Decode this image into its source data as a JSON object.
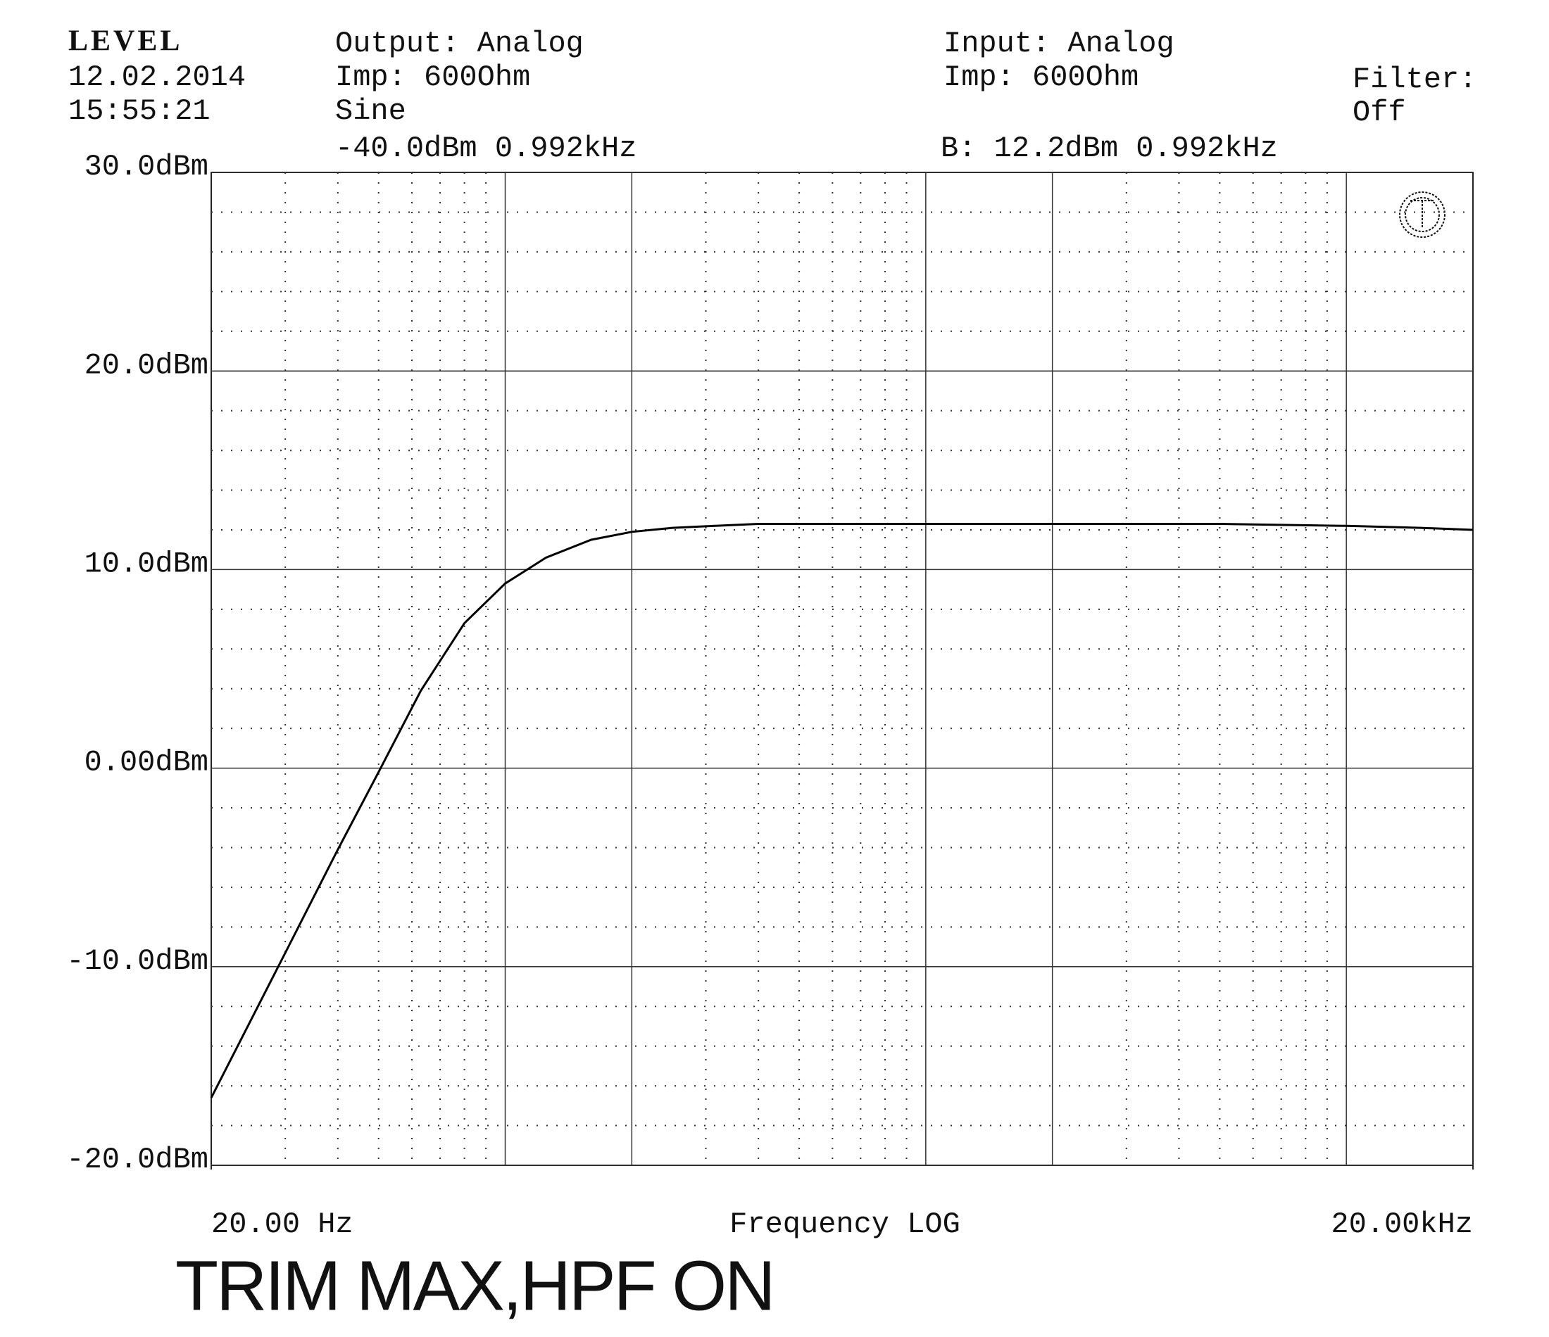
{
  "header": {
    "brand": "LEVEL",
    "date": "12.02.2014",
    "time": "15:55:21",
    "output": "Output: Analog",
    "output_imp": "Imp: 600Ohm",
    "waveform": "Sine",
    "generator": "-40.0dBm 0.992kHz",
    "input": "Input: Analog",
    "input_imp": "Imp: 600Ohm",
    "reading": "B: 12.2dBm 0.992kHz",
    "filter": "Filter:",
    "filter_state": "Off"
  },
  "caption": "TRIM MAX,HPF ON",
  "chart_data": {
    "type": "line",
    "x_label": "Frequency LOG",
    "xscale": "log",
    "color": "#000000",
    "x": [
      20,
      30,
      40,
      50,
      63,
      80,
      100,
      125,
      160,
      200,
      250,
      315,
      400,
      1000,
      2000,
      5000,
      10000,
      15000,
      20000
    ],
    "values": [
      -16.6,
      -9.3,
      -4.1,
      -0.2,
      3.9,
      7.3,
      9.3,
      10.6,
      11.5,
      11.9,
      12.1,
      12.2,
      12.3,
      12.3,
      12.3,
      12.3,
      12.2,
      12.1,
      12.0
    ],
    "xlim": [
      20,
      20000
    ],
    "ylim": [
      -20,
      30
    ],
    "xticks": [
      {
        "value": 20,
        "label": "20.00 Hz"
      },
      {
        "value": 20000,
        "label": "20.00kHz"
      }
    ],
    "yticks": [
      {
        "value": 30,
        "label": "30.0dBm"
      },
      {
        "value": 20,
        "label": "20.0dBm"
      },
      {
        "value": 10,
        "label": "10.0dBm"
      },
      {
        "value": 0,
        "label": "0.00dBm"
      },
      {
        "value": -10,
        "label": "-10.0dBm"
      },
      {
        "value": -20,
        "label": "-20.0dBm"
      }
    ],
    "xgrid_major": [
      100,
      200,
      1000,
      2000,
      10000
    ],
    "xgrid_minor": [
      30,
      40,
      50,
      60,
      70,
      80,
      90,
      300,
      400,
      500,
      600,
      700,
      800,
      900,
      3000,
      4000,
      5000,
      6000,
      7000,
      8000,
      9000
    ],
    "ygrid_minor": [
      28,
      26,
      24,
      22,
      18,
      16,
      14,
      12,
      8,
      6,
      4,
      2,
      -2,
      -4,
      -6,
      -8,
      -12,
      -14,
      -16,
      -18
    ],
    "grid": true
  }
}
